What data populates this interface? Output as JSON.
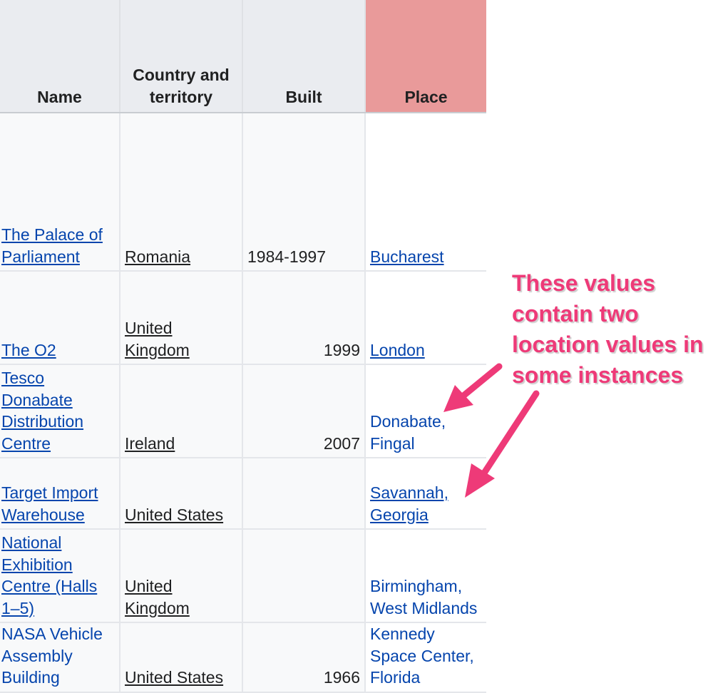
{
  "table": {
    "headers": {
      "name": "Name",
      "country": "Country and territory",
      "built": "Built",
      "place": "Place"
    },
    "rows": [
      {
        "name": "The Palace of Parliament",
        "country": "Romania",
        "built": "1984-1997",
        "place": "Bucharest"
      },
      {
        "name": "The O2",
        "country": "United Kingdom",
        "built": "1999",
        "place": "London"
      },
      {
        "name": "Tesco Donabate Distribution Centre",
        "country": "Ireland",
        "built": "2007",
        "place": "Donabate, Fingal"
      },
      {
        "name": "Target Import Warehouse",
        "country": "United States",
        "built": "",
        "place": "Savannah, Georgia"
      },
      {
        "name": "National Exhibition Centre (Halls 1–5)",
        "country": "United Kingdom",
        "built": "",
        "place": "Birmingham, West Midlands"
      },
      {
        "name": "NASA Vehicle Assembly Building",
        "country": "United States",
        "built": "1966",
        "place": "Kennedy Space Center, Florida"
      }
    ]
  },
  "annotation": {
    "lines": [
      "These values",
      "contain two",
      "location values in",
      "some instances"
    ],
    "color": "#ee3a78"
  },
  "colors": {
    "header_bg": "#eaecf0",
    "place_header_bg": "#e99a9a",
    "link": "#0645ad"
  }
}
